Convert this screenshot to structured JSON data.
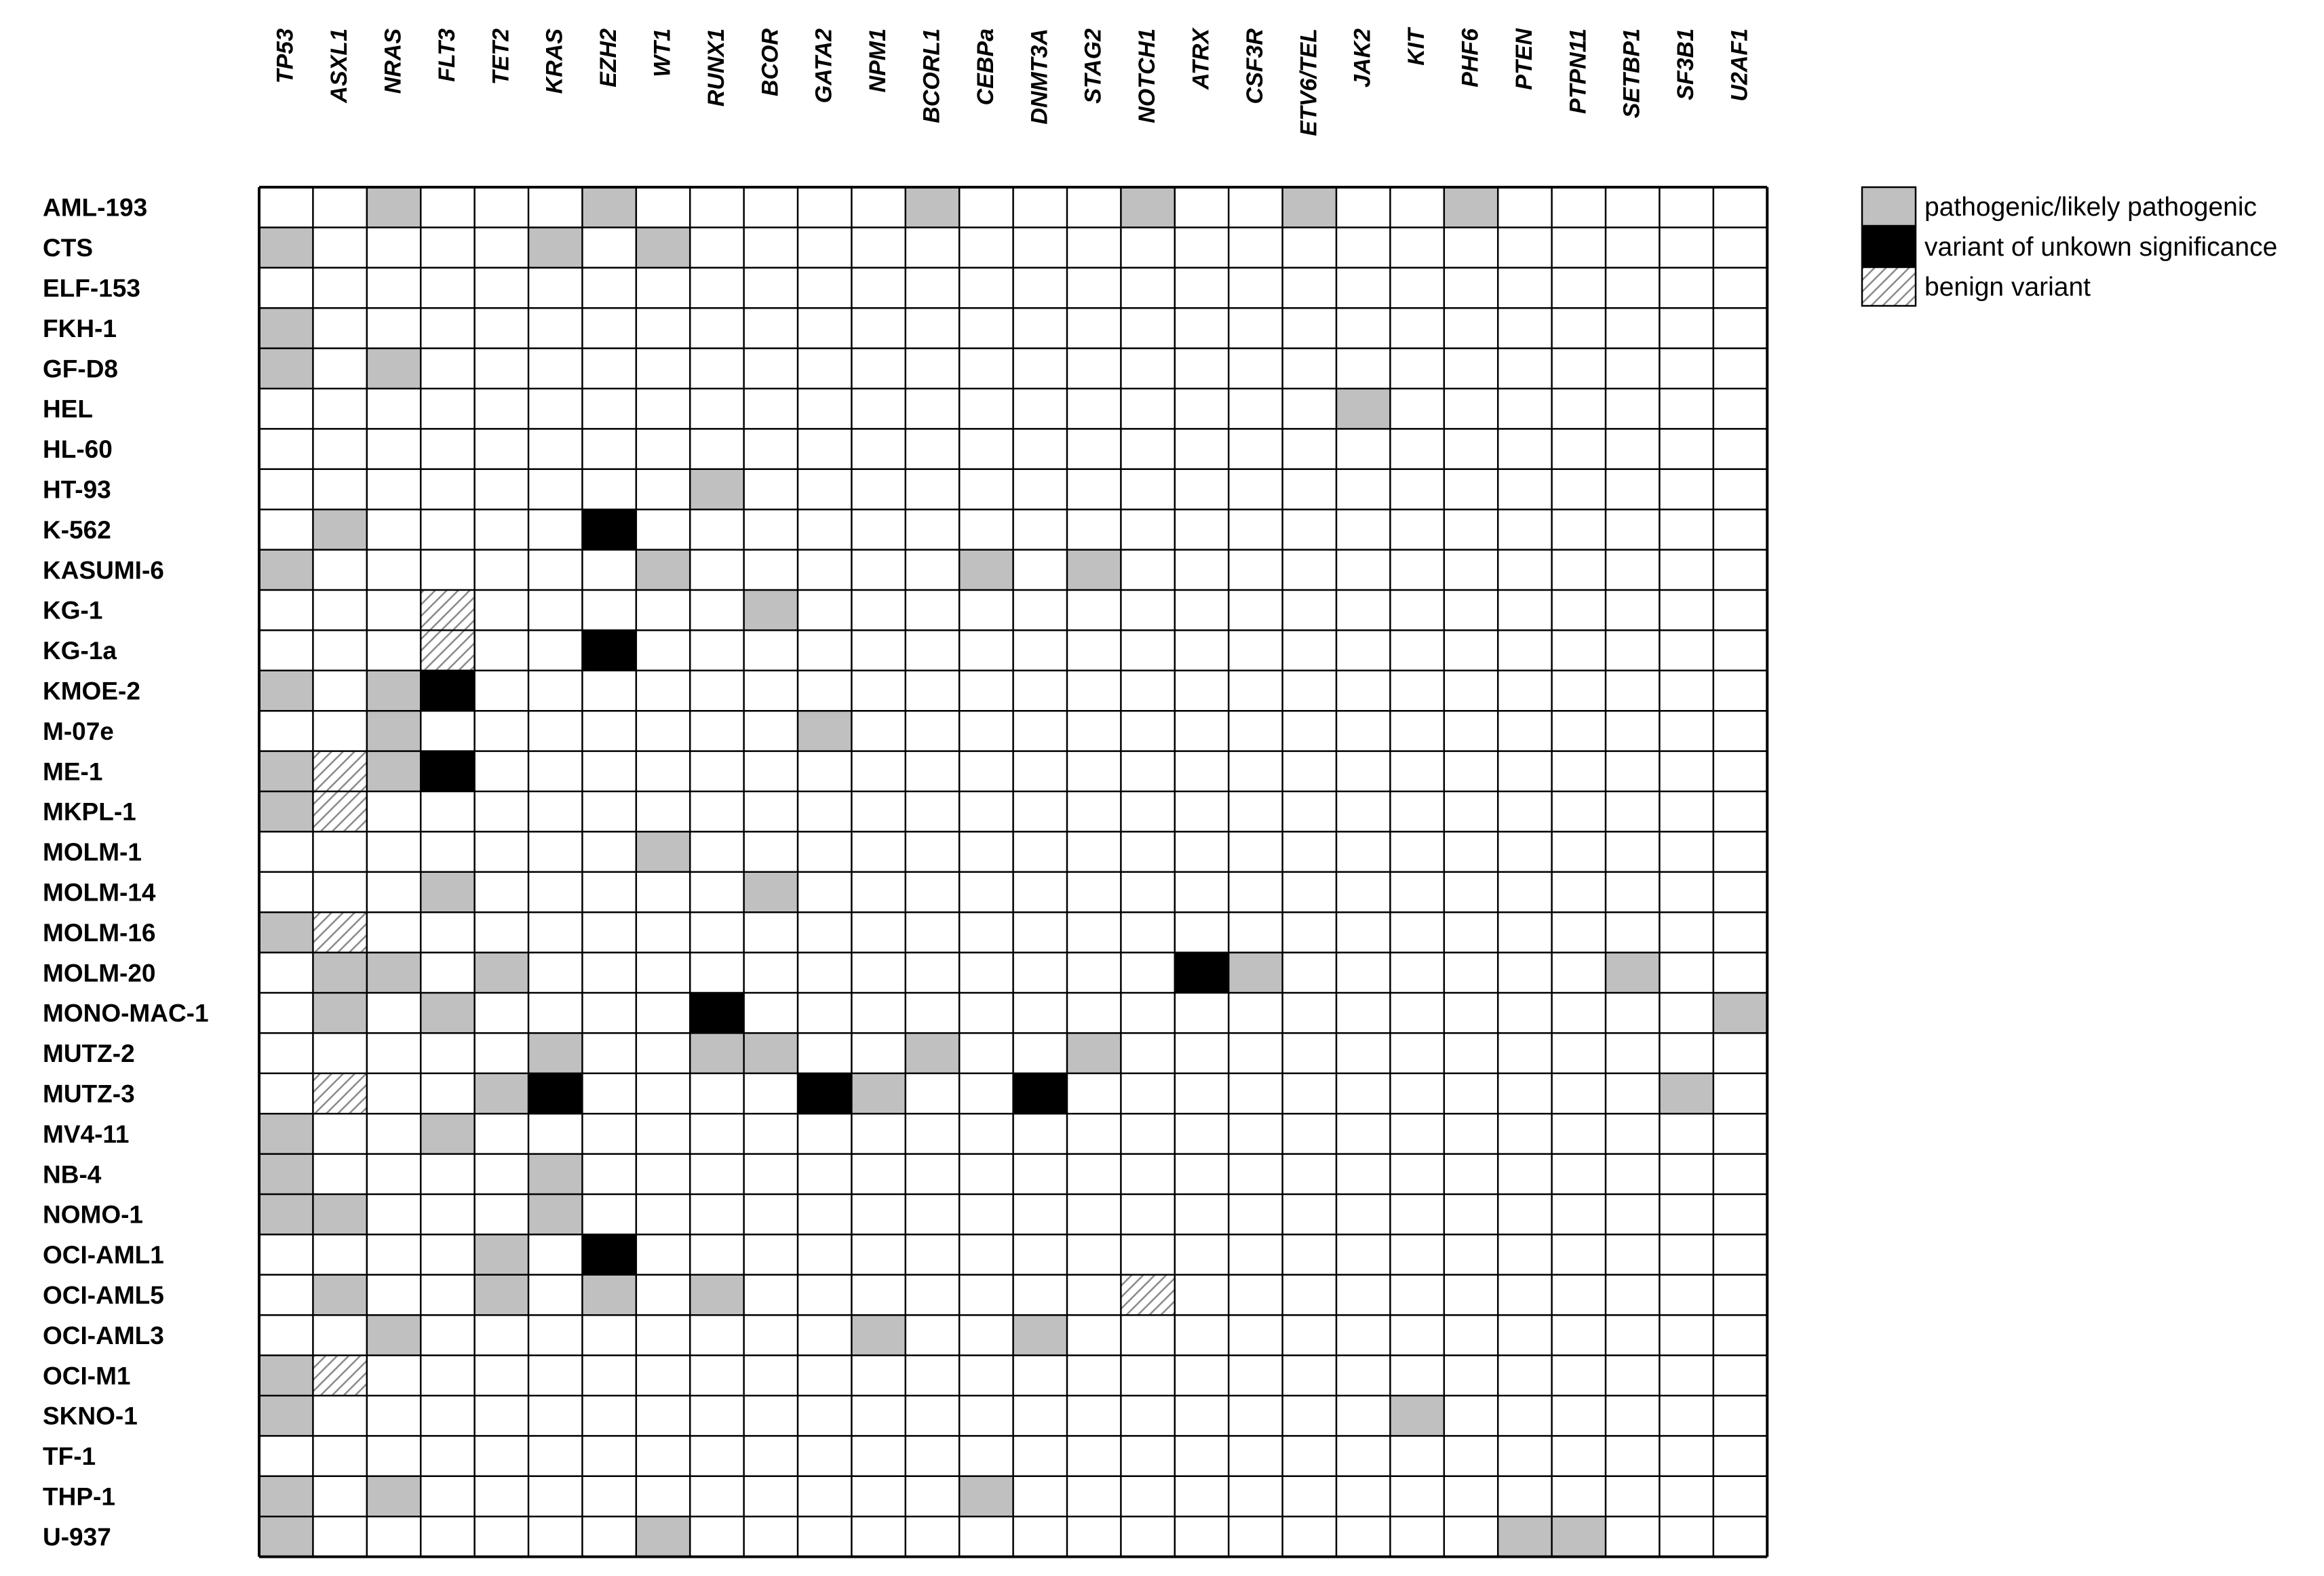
{
  "chart_data": {
    "type": "heatmap",
    "title": "",
    "xlabel": "",
    "ylabel": "",
    "columns": [
      "TP53",
      "ASXL1",
      "NRAS",
      "FLT3",
      "TET2",
      "KRAS",
      "EZH2",
      "WT1",
      "RUNX1",
      "BCOR",
      "GATA2",
      "NPM1",
      "BCORL1",
      "CEBPa",
      "DNMT3A",
      "STAG2",
      "NOTCH1",
      "ATRX",
      "CSF3R",
      "ETV6/TEL",
      "JAK2",
      "KIT",
      "PHF6",
      "PTEN",
      "PTPN11",
      "SETBP1",
      "SF3B1",
      "U2AF1"
    ],
    "rows": [
      "AML-193",
      "CTS",
      "ELF-153",
      "FKH-1",
      "GF-D8",
      "HEL",
      "HL-60",
      "HT-93",
      "K-562",
      "KASUMI-6",
      "KG-1",
      "KG-1a",
      "KMOE-2",
      "M-07e",
      "ME-1",
      "MKPL-1",
      "MOLM-1",
      "MOLM-14",
      "MOLM-16",
      "MOLM-20",
      "MONO-MAC-1",
      "MUTZ-2",
      "MUTZ-3",
      "MV4-11",
      "NB-4",
      "NOMO-1",
      "OCI-AML1",
      "OCI-AML5",
      "OCI-AML3",
      "OCI-M1",
      "SKNO-1",
      "TF-1",
      "THP-1",
      "U-937"
    ],
    "categories": {
      "0": "none",
      "1": "pathogenic/likely pathogenic",
      "2": "variant of unkown significance",
      "3": "benign variant"
    },
    "legend": [
      {
        "code": 1,
        "label": "pathogenic/likely pathogenic",
        "color": "#c0c0c0"
      },
      {
        "code": 2,
        "label": "variant of unkown significance",
        "color": "#000000"
      },
      {
        "code": 3,
        "label": "benign variant",
        "color": "hatched"
      }
    ],
    "legend_position": "top-right",
    "colors": {
      "pathogenic": "#c0c0c0",
      "vus": "#000000",
      "benign_bg": "#ffffff",
      "benign_hatch": "#8a8a8a",
      "grid": "#000000"
    },
    "matrix": [
      [
        0,
        0,
        1,
        0,
        0,
        0,
        1,
        0,
        0,
        0,
        0,
        0,
        1,
        0,
        0,
        0,
        1,
        0,
        0,
        1,
        0,
        0,
        1,
        0,
        0,
        0,
        0,
        0
      ],
      [
        1,
        0,
        0,
        0,
        0,
        1,
        0,
        1,
        0,
        0,
        0,
        0,
        0,
        0,
        0,
        0,
        0,
        0,
        0,
        0,
        0,
        0,
        0,
        0,
        0,
        0,
        0,
        0
      ],
      [
        0,
        0,
        0,
        0,
        0,
        0,
        0,
        0,
        0,
        0,
        0,
        0,
        0,
        0,
        0,
        0,
        0,
        0,
        0,
        0,
        0,
        0,
        0,
        0,
        0,
        0,
        0,
        0
      ],
      [
        1,
        0,
        0,
        0,
        0,
        0,
        0,
        0,
        0,
        0,
        0,
        0,
        0,
        0,
        0,
        0,
        0,
        0,
        0,
        0,
        0,
        0,
        0,
        0,
        0,
        0,
        0,
        0
      ],
      [
        1,
        0,
        1,
        0,
        0,
        0,
        0,
        0,
        0,
        0,
        0,
        0,
        0,
        0,
        0,
        0,
        0,
        0,
        0,
        0,
        0,
        0,
        0,
        0,
        0,
        0,
        0,
        0
      ],
      [
        0,
        0,
        0,
        0,
        0,
        0,
        0,
        0,
        0,
        0,
        0,
        0,
        0,
        0,
        0,
        0,
        0,
        0,
        0,
        0,
        1,
        0,
        0,
        0,
        0,
        0,
        0,
        0
      ],
      [
        0,
        0,
        0,
        0,
        0,
        0,
        0,
        0,
        0,
        0,
        0,
        0,
        0,
        0,
        0,
        0,
        0,
        0,
        0,
        0,
        0,
        0,
        0,
        0,
        0,
        0,
        0,
        0
      ],
      [
        0,
        0,
        0,
        0,
        0,
        0,
        0,
        0,
        1,
        0,
        0,
        0,
        0,
        0,
        0,
        0,
        0,
        0,
        0,
        0,
        0,
        0,
        0,
        0,
        0,
        0,
        0,
        0
      ],
      [
        0,
        1,
        0,
        0,
        0,
        0,
        2,
        0,
        0,
        0,
        0,
        0,
        0,
        0,
        0,
        0,
        0,
        0,
        0,
        0,
        0,
        0,
        0,
        0,
        0,
        0,
        0,
        0
      ],
      [
        1,
        0,
        0,
        0,
        0,
        0,
        0,
        1,
        0,
        0,
        0,
        0,
        0,
        1,
        0,
        1,
        0,
        0,
        0,
        0,
        0,
        0,
        0,
        0,
        0,
        0,
        0,
        0
      ],
      [
        0,
        0,
        0,
        3,
        0,
        0,
        0,
        0,
        0,
        1,
        0,
        0,
        0,
        0,
        0,
        0,
        0,
        0,
        0,
        0,
        0,
        0,
        0,
        0,
        0,
        0,
        0,
        0
      ],
      [
        0,
        0,
        0,
        3,
        0,
        0,
        2,
        0,
        0,
        0,
        0,
        0,
        0,
        0,
        0,
        0,
        0,
        0,
        0,
        0,
        0,
        0,
        0,
        0,
        0,
        0,
        0,
        0
      ],
      [
        1,
        0,
        1,
        2,
        0,
        0,
        0,
        0,
        0,
        0,
        0,
        0,
        0,
        0,
        0,
        0,
        0,
        0,
        0,
        0,
        0,
        0,
        0,
        0,
        0,
        0,
        0,
        0
      ],
      [
        0,
        0,
        1,
        0,
        0,
        0,
        0,
        0,
        0,
        0,
        1,
        0,
        0,
        0,
        0,
        0,
        0,
        0,
        0,
        0,
        0,
        0,
        0,
        0,
        0,
        0,
        0,
        0
      ],
      [
        1,
        3,
        1,
        2,
        0,
        0,
        0,
        0,
        0,
        0,
        0,
        0,
        0,
        0,
        0,
        0,
        0,
        0,
        0,
        0,
        0,
        0,
        0,
        0,
        0,
        0,
        0,
        0
      ],
      [
        1,
        3,
        0,
        0,
        0,
        0,
        0,
        0,
        0,
        0,
        0,
        0,
        0,
        0,
        0,
        0,
        0,
        0,
        0,
        0,
        0,
        0,
        0,
        0,
        0,
        0,
        0,
        0
      ],
      [
        0,
        0,
        0,
        0,
        0,
        0,
        0,
        1,
        0,
        0,
        0,
        0,
        0,
        0,
        0,
        0,
        0,
        0,
        0,
        0,
        0,
        0,
        0,
        0,
        0,
        0,
        0,
        0
      ],
      [
        0,
        0,
        0,
        1,
        0,
        0,
        0,
        0,
        0,
        1,
        0,
        0,
        0,
        0,
        0,
        0,
        0,
        0,
        0,
        0,
        0,
        0,
        0,
        0,
        0,
        0,
        0,
        0
      ],
      [
        1,
        3,
        0,
        0,
        0,
        0,
        0,
        0,
        0,
        0,
        0,
        0,
        0,
        0,
        0,
        0,
        0,
        0,
        0,
        0,
        0,
        0,
        0,
        0,
        0,
        0,
        0,
        0
      ],
      [
        0,
        1,
        1,
        0,
        1,
        0,
        0,
        0,
        0,
        0,
        0,
        0,
        0,
        0,
        0,
        0,
        0,
        2,
        1,
        0,
        0,
        0,
        0,
        0,
        0,
        1,
        0,
        0
      ],
      [
        0,
        1,
        0,
        1,
        0,
        0,
        0,
        0,
        2,
        0,
        0,
        0,
        0,
        0,
        0,
        0,
        0,
        0,
        0,
        0,
        0,
        0,
        0,
        0,
        0,
        0,
        0,
        1
      ],
      [
        0,
        0,
        0,
        0,
        0,
        1,
        0,
        0,
        1,
        1,
        0,
        0,
        1,
        0,
        0,
        1,
        0,
        0,
        0,
        0,
        0,
        0,
        0,
        0,
        0,
        0,
        0,
        0
      ],
      [
        0,
        3,
        0,
        0,
        1,
        2,
        0,
        0,
        0,
        0,
        2,
        1,
        0,
        0,
        2,
        0,
        0,
        0,
        0,
        0,
        0,
        0,
        0,
        0,
        0,
        0,
        1,
        0
      ],
      [
        1,
        0,
        0,
        1,
        0,
        0,
        0,
        0,
        0,
        0,
        0,
        0,
        0,
        0,
        0,
        0,
        0,
        0,
        0,
        0,
        0,
        0,
        0,
        0,
        0,
        0,
        0,
        0
      ],
      [
        1,
        0,
        0,
        0,
        0,
        1,
        0,
        0,
        0,
        0,
        0,
        0,
        0,
        0,
        0,
        0,
        0,
        0,
        0,
        0,
        0,
        0,
        0,
        0,
        0,
        0,
        0,
        0
      ],
      [
        1,
        1,
        0,
        0,
        0,
        1,
        0,
        0,
        0,
        0,
        0,
        0,
        0,
        0,
        0,
        0,
        0,
        0,
        0,
        0,
        0,
        0,
        0,
        0,
        0,
        0,
        0,
        0
      ],
      [
        0,
        0,
        0,
        0,
        1,
        0,
        2,
        0,
        0,
        0,
        0,
        0,
        0,
        0,
        0,
        0,
        0,
        0,
        0,
        0,
        0,
        0,
        0,
        0,
        0,
        0,
        0,
        0
      ],
      [
        0,
        1,
        0,
        0,
        1,
        0,
        1,
        0,
        1,
        0,
        0,
        0,
        0,
        0,
        0,
        0,
        3,
        0,
        0,
        0,
        0,
        0,
        0,
        0,
        0,
        0,
        0,
        0
      ],
      [
        0,
        0,
        1,
        0,
        0,
        0,
        0,
        0,
        0,
        0,
        0,
        1,
        0,
        0,
        1,
        0,
        0,
        0,
        0,
        0,
        0,
        0,
        0,
        0,
        0,
        0,
        0,
        0
      ],
      [
        1,
        3,
        0,
        0,
        0,
        0,
        0,
        0,
        0,
        0,
        0,
        0,
        0,
        0,
        0,
        0,
        0,
        0,
        0,
        0,
        0,
        0,
        0,
        0,
        0,
        0,
        0,
        0
      ],
      [
        1,
        0,
        0,
        0,
        0,
        0,
        0,
        0,
        0,
        0,
        0,
        0,
        0,
        0,
        0,
        0,
        0,
        0,
        0,
        0,
        0,
        1,
        0,
        0,
        0,
        0,
        0,
        0
      ],
      [
        0,
        0,
        0,
        0,
        0,
        0,
        0,
        0,
        0,
        0,
        0,
        0,
        0,
        0,
        0,
        0,
        0,
        0,
        0,
        0,
        0,
        0,
        0,
        0,
        0,
        0,
        0,
        0
      ],
      [
        1,
        0,
        1,
        0,
        0,
        0,
        0,
        0,
        0,
        0,
        0,
        0,
        0,
        1,
        0,
        0,
        0,
        0,
        0,
        0,
        0,
        0,
        0,
        0,
        0,
        0,
        0,
        0
      ],
      [
        1,
        0,
        0,
        0,
        0,
        0,
        0,
        1,
        0,
        0,
        0,
        0,
        0,
        0,
        0,
        0,
        0,
        0,
        0,
        0,
        0,
        0,
        0,
        1,
        1,
        0,
        0,
        0
      ]
    ]
  }
}
